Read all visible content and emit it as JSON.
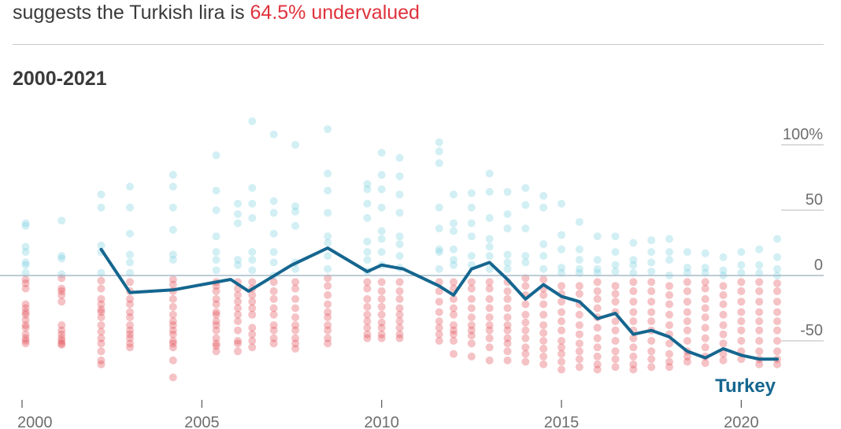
{
  "headline": {
    "text": "suggests the Turkish lira is ",
    "highlight": "64.5% undervalued"
  },
  "subtitle": "2000-2021",
  "colors": {
    "overvalued": "#7dd0df",
    "undervalued": "#e3505a",
    "highlight_line": "#15668f",
    "zero_line": "#a7bcc8",
    "text": "#3a3a3a",
    "tick": "#6e6e6e"
  },
  "chart_data": {
    "type": "scatter",
    "title": "2000-2021",
    "xlabel": "",
    "ylabel": "",
    "xlim": [
      1999.9,
      2021.3
    ],
    "ylim": [
      -90,
      125
    ],
    "x_ticks": [
      2000,
      2005,
      2010,
      2015,
      2020
    ],
    "x_tick_labels": [
      "2000",
      "2005",
      "2010",
      "2015",
      "2020"
    ],
    "y_ticks": [
      100,
      50,
      0,
      -50
    ],
    "y_tick_labels": [
      "100%",
      "50",
      "0",
      "-50"
    ],
    "grid": "horizontal",
    "highlight_series": {
      "name": "Turkey",
      "x": [
        2002.2,
        2003.0,
        2004.2,
        2005.8,
        2006.3,
        2007.5,
        2008.5,
        2009.6,
        2010.0,
        2010.6,
        2011.6,
        2012.0,
        2012.5,
        2013.0,
        2013.5,
        2014.0,
        2014.5,
        2015.0,
        2015.5,
        2016.0,
        2016.5,
        2017.0,
        2017.5,
        2018.0,
        2018.5,
        2019.0,
        2019.5,
        2020.0,
        2020.5,
        2021.0
      ],
      "y": [
        20,
        -13,
        -11,
        -3,
        -12,
        8,
        21,
        3,
        8,
        5,
        -8,
        -15,
        5,
        10,
        -3,
        -18,
        -7,
        -16,
        -20,
        -33,
        -29,
        -45,
        -42,
        -47,
        -58,
        -63,
        -56,
        -61,
        -64,
        -64
      ]
    },
    "others": {
      "description_values_by_date": [
        {
          "x": 2000.1,
          "y": [
            38,
            40,
            22,
            18,
            10,
            8,
            2,
            -3,
            -6,
            -10,
            -22,
            -25,
            -28,
            -30,
            -34,
            -38,
            -40,
            -45,
            -48,
            -50,
            -52
          ]
        },
        {
          "x": 2001.1,
          "y": [
            42,
            13,
            15,
            1,
            -2,
            -10,
            -12,
            -15,
            -20,
            -38,
            -42,
            -45,
            -48,
            -50,
            -52,
            -53
          ]
        },
        {
          "x": 2002.2,
          "y": [
            62,
            52,
            23,
            18,
            2,
            -4,
            -10,
            -18,
            -22,
            -26,
            -28,
            -32,
            -38,
            -43,
            -48,
            -52,
            -58,
            -65,
            -68
          ]
        },
        {
          "x": 2003.0,
          "y": [
            68,
            52,
            32,
            16,
            10,
            2,
            -5,
            -12,
            -18,
            -22,
            -28,
            -32,
            -38,
            -42,
            -45,
            -48,
            -52,
            -55
          ]
        },
        {
          "x": 2004.2,
          "y": [
            77,
            68,
            52,
            35,
            16,
            12,
            -3,
            -7,
            -12,
            -18,
            -24,
            -30,
            -35,
            -38,
            -42,
            -45,
            -50,
            -52,
            -55,
            -65,
            -78
          ]
        },
        {
          "x": 2005.4,
          "y": [
            92,
            65,
            50,
            30,
            18,
            12,
            4,
            -5,
            -8,
            -12,
            -18,
            -22,
            -28,
            -30,
            -35,
            -38,
            -42,
            -48,
            -52,
            -54,
            -58
          ]
        },
        {
          "x": 2006.0,
          "y": [
            55,
            47,
            40,
            12,
            8,
            -5,
            -10,
            -15,
            -20,
            -25,
            -30,
            -35,
            -42,
            -50,
            -52,
            -58
          ]
        },
        {
          "x": 2006.4,
          "y": [
            118,
            67,
            55,
            44,
            18,
            12,
            4,
            -5,
            -10,
            -15,
            -20,
            -25,
            -30,
            -40,
            -45,
            -50,
            -55
          ]
        },
        {
          "x": 2007.0,
          "y": [
            108,
            57,
            48,
            32,
            18,
            10,
            0,
            -5,
            -12,
            -18,
            -25,
            -30,
            -38,
            -42,
            -48,
            -52
          ]
        },
        {
          "x": 2007.6,
          "y": [
            100,
            53,
            49,
            38,
            10,
            5,
            -5,
            -10,
            -18,
            -25,
            -32,
            -38,
            -42,
            -48,
            -52,
            -56
          ]
        },
        {
          "x": 2008.5,
          "y": [
            112,
            78,
            65,
            48,
            30,
            25,
            15,
            5,
            -2,
            -8,
            -15,
            -22,
            -28,
            -32,
            -38,
            -42,
            -48,
            -52
          ]
        },
        {
          "x": 2009.6,
          "y": [
            70,
            66,
            55,
            44,
            26,
            18,
            12,
            3,
            -5,
            -10,
            -18,
            -24,
            -30,
            -35,
            -40,
            -45,
            -48
          ]
        },
        {
          "x": 2010.0,
          "y": [
            94,
            77,
            66,
            52,
            34,
            28,
            18,
            8,
            -5,
            -12,
            -18,
            -24,
            -30,
            -36,
            -40,
            -45,
            -48
          ]
        },
        {
          "x": 2010.5,
          "y": [
            90,
            76,
            62,
            48,
            30,
            24,
            15,
            6,
            -5,
            -12,
            -18,
            -25,
            -30,
            -35,
            -40,
            -45,
            -48
          ]
        },
        {
          "x": 2011.6,
          "y": [
            102,
            95,
            86,
            52,
            36,
            20,
            18,
            5,
            -5,
            -12,
            -20,
            -28,
            -35,
            -40,
            -45,
            -50
          ]
        },
        {
          "x": 2012.0,
          "y": [
            62,
            40,
            34,
            20,
            12,
            8,
            -5,
            -10,
            -18,
            -25,
            -30,
            -38,
            -42,
            -45,
            -50,
            -60
          ]
        },
        {
          "x": 2012.5,
          "y": [
            63,
            52,
            40,
            30,
            15,
            8,
            -5,
            -10,
            -18,
            -25,
            -32,
            -38,
            -42,
            -46,
            -52,
            -62
          ]
        },
        {
          "x": 2013.0,
          "y": [
            78,
            64,
            44,
            28,
            22,
            15,
            5,
            -5,
            -10,
            -18,
            -25,
            -32,
            -38,
            -42,
            -48,
            -55,
            -65
          ]
        },
        {
          "x": 2013.5,
          "y": [
            64,
            47,
            36,
            16,
            10,
            5,
            -5,
            -12,
            -18,
            -25,
            -32,
            -38,
            -42,
            -48,
            -52,
            -58,
            -65
          ]
        },
        {
          "x": 2014.0,
          "y": [
            67,
            54,
            36,
            15,
            10,
            -2,
            -8,
            -15,
            -22,
            -30,
            -36,
            -42,
            -48,
            -55,
            -60,
            -66
          ]
        },
        {
          "x": 2014.5,
          "y": [
            61,
            52,
            24,
            15,
            5,
            -3,
            -10,
            -15,
            -22,
            -30,
            -38,
            -44,
            -50,
            -56,
            -62,
            -68
          ]
        },
        {
          "x": 2015.0,
          "y": [
            55,
            31,
            20,
            6,
            2,
            -8,
            -14,
            -20,
            -28,
            -35,
            -42,
            -50,
            -55,
            -60,
            -66,
            -72
          ]
        },
        {
          "x": 2015.5,
          "y": [
            41,
            20,
            12,
            5,
            2,
            -8,
            -14,
            -22,
            -30,
            -38,
            -45,
            -52,
            -58,
            -64,
            -70
          ]
        },
        {
          "x": 2016.0,
          "y": [
            30,
            12,
            5,
            2,
            -5,
            -12,
            -18,
            -25,
            -32,
            -40,
            -48,
            -55,
            -62,
            -68,
            -72
          ]
        },
        {
          "x": 2016.5,
          "y": [
            30,
            18,
            8,
            3,
            -8,
            -14,
            -20,
            -28,
            -35,
            -42,
            -50,
            -58,
            -64,
            -70
          ]
        },
        {
          "x": 2017.0,
          "y": [
            25,
            12,
            8,
            2,
            -5,
            -12,
            -20,
            -28,
            -35,
            -42,
            -48,
            -55,
            -62,
            -68,
            -72
          ]
        },
        {
          "x": 2017.5,
          "y": [
            27,
            18,
            10,
            3,
            -5,
            -12,
            -20,
            -28,
            -35,
            -42,
            -50,
            -58,
            -64,
            -70
          ]
        },
        {
          "x": 2018.0,
          "y": [
            28,
            18,
            12,
            0,
            -8,
            -15,
            -22,
            -30,
            -38,
            -45,
            -52,
            -60,
            -66,
            -70
          ]
        },
        {
          "x": 2018.5,
          "y": [
            18,
            6,
            2,
            -5,
            -12,
            -20,
            -28,
            -35,
            -42,
            -50,
            -58,
            -62,
            -66
          ]
        },
        {
          "x": 2019.0,
          "y": [
            17,
            6,
            2,
            -5,
            -10,
            -18,
            -25,
            -32,
            -40,
            -48,
            -55,
            -62,
            -67
          ]
        },
        {
          "x": 2019.5,
          "y": [
            14,
            4,
            0,
            -8,
            -15,
            -22,
            -30,
            -38,
            -45,
            -52,
            -60,
            -65
          ]
        },
        {
          "x": 2020.0,
          "y": [
            18,
            8,
            2,
            -5,
            -12,
            -20,
            -28,
            -35,
            -42,
            -50,
            -58,
            -64
          ]
        },
        {
          "x": 2020.5,
          "y": [
            20,
            8,
            2,
            -5,
            -12,
            -20,
            -28,
            -35,
            -42,
            -50,
            -58,
            -64,
            -68
          ]
        },
        {
          "x": 2021.0,
          "y": [
            28,
            14,
            5,
            0,
            -6,
            -12,
            -20,
            -28,
            -35,
            -42,
            -50,
            -58,
            -64,
            -68
          ]
        }
      ]
    }
  }
}
